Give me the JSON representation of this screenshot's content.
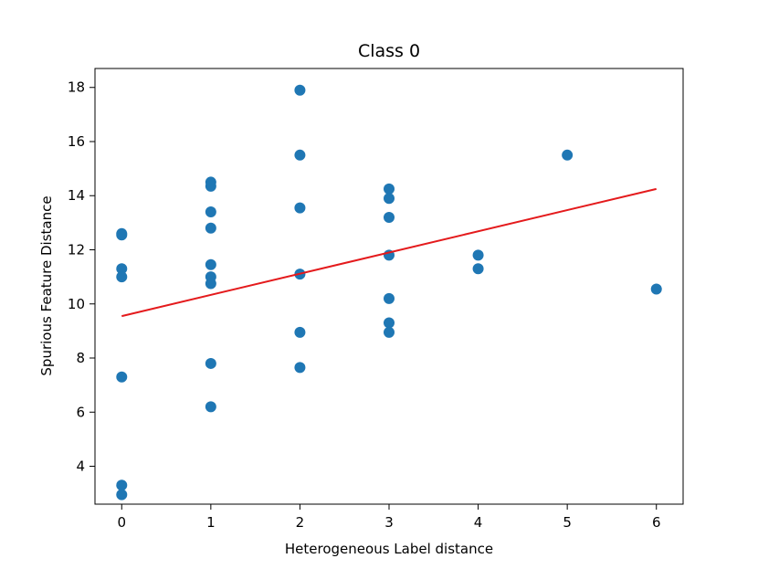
{
  "chart_data": {
    "type": "scatter",
    "title": "Class 0",
    "xlabel": "Heterogeneous Label distance",
    "ylabel": "Spurious Feature Distance",
    "xlim": [
      -0.3,
      6.3
    ],
    "ylim": [
      2.6,
      18.7
    ],
    "xticks": [
      0,
      1,
      2,
      3,
      4,
      5,
      6
    ],
    "yticks": [
      4,
      6,
      8,
      10,
      12,
      14,
      16,
      18
    ],
    "grid": false,
    "legend": "none",
    "series": [
      {
        "type": "scatter",
        "color": "#1f77b4",
        "points": [
          {
            "x": 0,
            "y": 12.6
          },
          {
            "x": 0,
            "y": 12.55
          },
          {
            "x": 0,
            "y": 11.3
          },
          {
            "x": 0,
            "y": 11.0
          },
          {
            "x": 0,
            "y": 7.3
          },
          {
            "x": 0,
            "y": 3.3
          },
          {
            "x": 0,
            "y": 2.95
          },
          {
            "x": 1,
            "y": 14.5
          },
          {
            "x": 1,
            "y": 14.35
          },
          {
            "x": 1,
            "y": 13.4
          },
          {
            "x": 1,
            "y": 12.8
          },
          {
            "x": 1,
            "y": 11.45
          },
          {
            "x": 1,
            "y": 11.0
          },
          {
            "x": 1,
            "y": 10.75
          },
          {
            "x": 1,
            "y": 7.8
          },
          {
            "x": 1,
            "y": 6.2
          },
          {
            "x": 2,
            "y": 17.9
          },
          {
            "x": 2,
            "y": 15.5
          },
          {
            "x": 2,
            "y": 13.55
          },
          {
            "x": 2,
            "y": 11.1
          },
          {
            "x": 2,
            "y": 8.95
          },
          {
            "x": 2,
            "y": 7.65
          },
          {
            "x": 3,
            "y": 14.25
          },
          {
            "x": 3,
            "y": 13.9
          },
          {
            "x": 3,
            "y": 13.2
          },
          {
            "x": 3,
            "y": 11.8
          },
          {
            "x": 3,
            "y": 10.2
          },
          {
            "x": 3,
            "y": 9.3
          },
          {
            "x": 3,
            "y": 8.95
          },
          {
            "x": 4,
            "y": 11.8
          },
          {
            "x": 4,
            "y": 11.3
          },
          {
            "x": 5,
            "y": 15.5
          },
          {
            "x": 6,
            "y": 10.55
          }
        ]
      },
      {
        "type": "line",
        "color": "#e41a1c",
        "points": [
          {
            "x": 0,
            "y": 9.55
          },
          {
            "x": 6,
            "y": 14.25
          }
        ]
      }
    ]
  }
}
